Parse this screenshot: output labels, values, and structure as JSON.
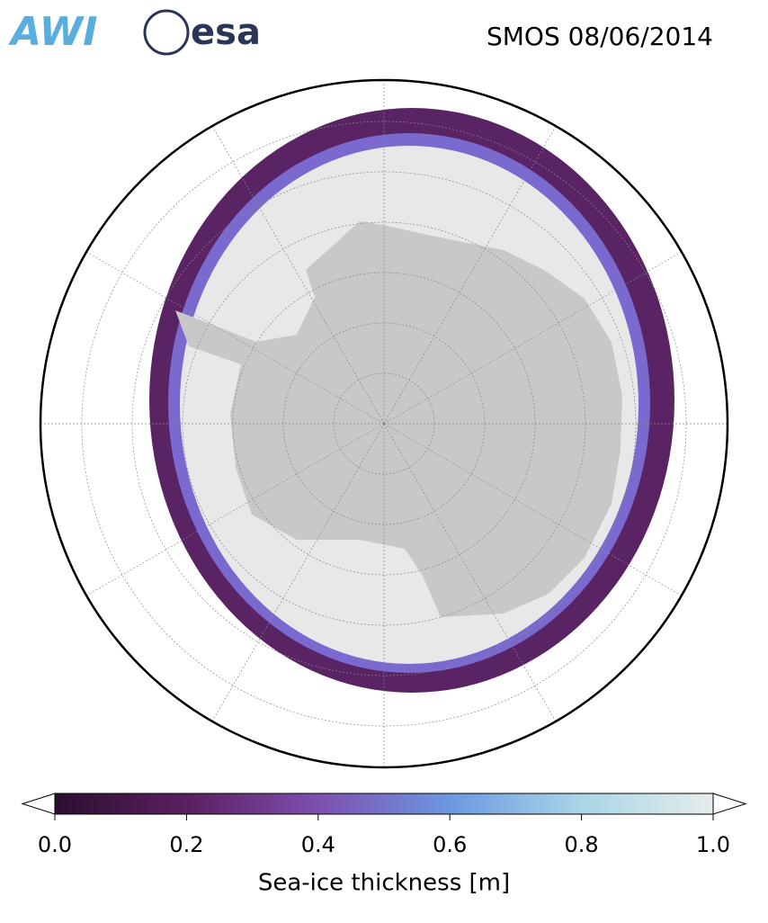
{
  "header": {
    "logos": [
      "AWI",
      "esa"
    ],
    "title": "SMOS 08/06/2014"
  },
  "colorbar": {
    "label": "Sea-ice thickness [m]",
    "lim": [
      0,
      1
    ],
    "ticks": [
      {
        "value": 0,
        "label": "0.0"
      },
      {
        "value": 0.2,
        "label": "0.2"
      },
      {
        "value": 0.4,
        "label": "0.4"
      },
      {
        "value": 0.6,
        "label": "0.6"
      },
      {
        "value": 0.8,
        "label": "0.8"
      },
      {
        "value": 1,
        "label": "1.0"
      }
    ],
    "colors": [
      "#2b0f2f",
      "#5b1f5f",
      "#7d4fb0",
      "#6c98e2",
      "#a9d6e6",
      "#e6ecec"
    ]
  }
}
